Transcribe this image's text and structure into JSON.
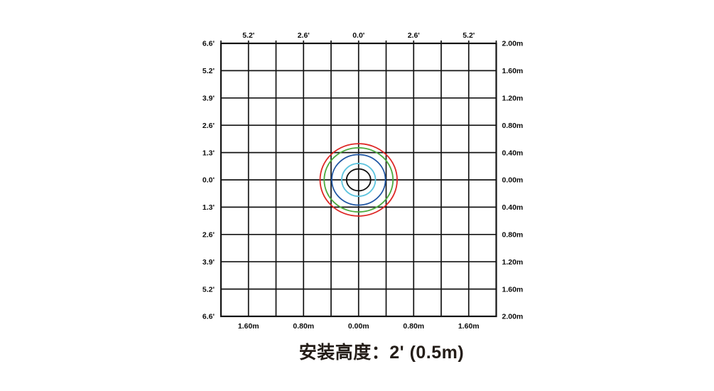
{
  "page": {
    "background": "#ffffff"
  },
  "chart_data": {
    "type": "contour",
    "title": "安装高度：2' (0.5m)",
    "axes": {
      "top": {
        "unit": "feet",
        "ticks": [
          "5.2'",
          "2.6'",
          "0.0'",
          "2.6'",
          "5.2'"
        ]
      },
      "bottom": {
        "unit": "meters",
        "ticks": [
          "1.60m",
          "0.80m",
          "0.00m",
          "0.80m",
          "1.60m"
        ]
      },
      "left": {
        "unit": "feet",
        "ticks": [
          "6.6'",
          "5.2'",
          "3.9'",
          "2.6'",
          "1.3'",
          "0.0'",
          "1.3'",
          "2.6'",
          "3.9'",
          "5.2'",
          "6.6'"
        ]
      },
      "right": {
        "unit": "meters",
        "ticks": [
          "2.00m",
          "1.60m",
          "1.20m",
          "0.80m",
          "0.40m",
          "0.00m",
          "0.40m",
          "0.80m",
          "1.20m",
          "1.60m",
          "2.00m"
        ]
      }
    },
    "grid": {
      "cols": 10,
      "rows": 10,
      "cell_size_m": 0.4,
      "cell_size_ft": 1.3,
      "x_range_m": [
        -2.0,
        2.0
      ],
      "y_range_m": [
        -2.0,
        2.0
      ],
      "line_color": "#141414",
      "grid_on": true
    },
    "center_m": {
      "x": 0.0,
      "y": 0.0
    },
    "rings": [
      {
        "name": "ring-red",
        "color": "#de2826",
        "rx_m": 0.56,
        "ry_m": 0.53
      },
      {
        "name": "ring-green",
        "color": "#4caa3e",
        "rx_m": 0.5,
        "ry_m": 0.47
      },
      {
        "name": "ring-blue",
        "color": "#1e55a3",
        "rx_m": 0.39,
        "ry_m": 0.37
      },
      {
        "name": "ring-cyan",
        "color": "#5cc3de",
        "rx_m": 0.245,
        "ry_m": 0.24
      },
      {
        "name": "ring-black",
        "color": "#0d0d0d",
        "rx_m": 0.175,
        "ry_m": 0.16
      }
    ],
    "ring_stroke_px": 1.8
  }
}
